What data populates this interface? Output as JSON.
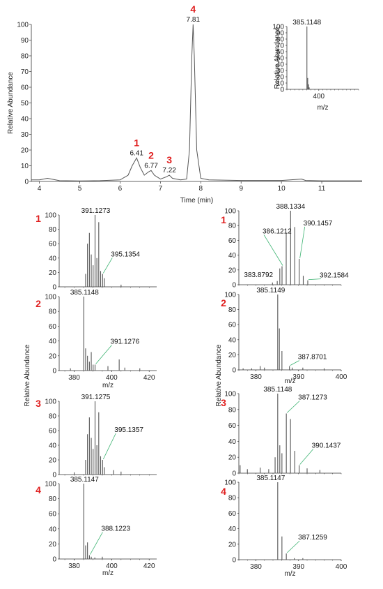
{
  "colors": {
    "trace": "#555555",
    "annotation": "#3cb371",
    "number": "#e02020",
    "axis": "#333333"
  },
  "chart_data": [
    {
      "id": "chromatogram",
      "type": "line",
      "xlabel": "Time (min)",
      "ylabel": "Relative Abundance",
      "xlim": [
        3.8,
        12.0
      ],
      "ylim": [
        0,
        100
      ],
      "xticks": [
        4,
        5,
        6,
        7,
        8,
        9,
        10,
        11
      ],
      "yticks": [
        0,
        10,
        20,
        30,
        40,
        50,
        60,
        70,
        80,
        90,
        100
      ],
      "series": [
        {
          "x": [
            3.8,
            4.0,
            4.1,
            4.2,
            4.3,
            4.5,
            5.0,
            5.5,
            6.0,
            6.2,
            6.3,
            6.41,
            6.5,
            6.6,
            6.7,
            6.77,
            6.85,
            7.0,
            7.15,
            7.22,
            7.3,
            7.5,
            7.65,
            7.72,
            7.78,
            7.81,
            7.84,
            7.9,
            8.0,
            8.2,
            9.0,
            10.0,
            10.5,
            10.6,
            11.0,
            12.0
          ],
          "y": [
            1,
            1,
            1.5,
            2,
            1.5,
            0.5,
            0.3,
            0.5,
            1,
            4,
            10,
            15,
            9,
            4,
            6,
            7,
            4,
            1.5,
            3,
            4,
            2,
            1,
            1.5,
            20,
            80,
            100,
            80,
            20,
            2,
            1,
            0.6,
            0.6,
            1.5,
            0.6,
            0.4,
            0.4
          ]
        }
      ],
      "peaks": [
        {
          "number": "1",
          "x": 6.41,
          "label": "6.41",
          "y": 15
        },
        {
          "number": "2",
          "x": 6.77,
          "label": "6.77",
          "y": 7
        },
        {
          "number": "3",
          "x": 7.22,
          "label": "7.22",
          "y": 4
        },
        {
          "number": "4",
          "x": 7.81,
          "label": "7.81",
          "y": 100
        }
      ]
    },
    {
      "id": "inset",
      "type": "bar",
      "xlabel": "m/z",
      "ylabel": "Relative Abundance",
      "xlim": [
        360,
        450
      ],
      "ylim": [
        0,
        100
      ],
      "xticks": [
        400
      ],
      "yticks": [
        0,
        10,
        20,
        30,
        40,
        50,
        60,
        70,
        80,
        90,
        100
      ],
      "peaks": [
        {
          "x": 385.1148,
          "y": 100,
          "label": "385.1148"
        },
        {
          "x": 386.1,
          "y": 18
        },
        {
          "x": 387.1,
          "y": 8
        },
        {
          "x": 388.0,
          "y": 3
        }
      ]
    },
    {
      "id": "left-panel-1",
      "number": "1",
      "type": "bar",
      "xlim": [
        372,
        424
      ],
      "ylim": [
        0,
        100
      ],
      "yticks": [
        0,
        20,
        40,
        60,
        80,
        100
      ],
      "peaks": [
        {
          "x": 386.1,
          "y": 18
        },
        {
          "x": 387.1,
          "y": 60
        },
        {
          "x": 388.1,
          "y": 75
        },
        {
          "x": 389.1,
          "y": 45
        },
        {
          "x": 390.1,
          "y": 30
        },
        {
          "x": 391.1273,
          "y": 100,
          "label": "391.1273"
        },
        {
          "x": 392.1,
          "y": 40
        },
        {
          "x": 393.1,
          "y": 90
        },
        {
          "x": 394.1,
          "y": 22
        },
        {
          "x": 395.1354,
          "y": 18,
          "label": "395.1354"
        },
        {
          "x": 396.1,
          "y": 12
        },
        {
          "x": 405.0,
          "y": 3
        }
      ]
    },
    {
      "id": "left-panel-2",
      "number": "2",
      "type": "bar",
      "xlabel": "m/z",
      "xlim": [
        372,
        424
      ],
      "ylim": [
        0,
        100
      ],
      "xticks": [
        380,
        400,
        420
      ],
      "yticks": [
        0,
        20,
        40,
        60,
        80,
        100
      ],
      "peaks": [
        {
          "x": 385.1148,
          "y": 100,
          "label": "385.1148"
        },
        {
          "x": 386.1,
          "y": 30
        },
        {
          "x": 387.1,
          "y": 20
        },
        {
          "x": 388.1,
          "y": 12
        },
        {
          "x": 389.1,
          "y": 25
        },
        {
          "x": 390.1,
          "y": 8
        },
        {
          "x": 391.1276,
          "y": 8,
          "label": "391.1276"
        },
        {
          "x": 378.0,
          "y": 3
        },
        {
          "x": 398.0,
          "y": 6
        },
        {
          "x": 404.0,
          "y": 15
        },
        {
          "x": 407.0,
          "y": 4
        },
        {
          "x": 415.0,
          "y": 3
        }
      ]
    },
    {
      "id": "left-panel-3",
      "number": "3",
      "type": "bar",
      "xlim": [
        372,
        424
      ],
      "ylim": [
        0,
        100
      ],
      "yticks": [
        0,
        20,
        40,
        60,
        80,
        100
      ],
      "peaks": [
        {
          "x": 386.1,
          "y": 20
        },
        {
          "x": 387.1,
          "y": 55
        },
        {
          "x": 388.1,
          "y": 78
        },
        {
          "x": 389.1,
          "y": 50
        },
        {
          "x": 390.1,
          "y": 35
        },
        {
          "x": 391.1275,
          "y": 100,
          "label": "391.1275"
        },
        {
          "x": 392.1,
          "y": 40
        },
        {
          "x": 393.1,
          "y": 85
        },
        {
          "x": 394.1,
          "y": 25
        },
        {
          "x": 395.1357,
          "y": 20,
          "label": "395.1357"
        },
        {
          "x": 396.1,
          "y": 10
        },
        {
          "x": 380.0,
          "y": 3
        },
        {
          "x": 401.0,
          "y": 6
        },
        {
          "x": 405.0,
          "y": 4
        }
      ]
    },
    {
      "id": "left-panel-4",
      "number": "4",
      "type": "bar",
      "xlabel": "m/z",
      "xlim": [
        372,
        424
      ],
      "ylim": [
        0,
        100
      ],
      "xticks": [
        380,
        400,
        420
      ],
      "yticks": [
        0,
        20,
        40,
        60,
        80,
        100
      ],
      "peaks": [
        {
          "x": 385.1147,
          "y": 100,
          "label": "385.1147"
        },
        {
          "x": 386.1,
          "y": 18
        },
        {
          "x": 387.1,
          "y": 22
        },
        {
          "x": 388.1223,
          "y": 5,
          "label": "388.1223"
        },
        {
          "x": 389.1,
          "y": 3
        },
        {
          "x": 391.0,
          "y": 2
        },
        {
          "x": 395.0,
          "y": 3
        }
      ]
    },
    {
      "id": "right-panel-1",
      "number": "1",
      "type": "bar",
      "xlim": [
        376,
        400
      ],
      "ylim": [
        0,
        100
      ],
      "yticks": [
        0,
        20,
        40,
        60,
        80,
        100
      ],
      "peaks": [
        {
          "x": 383.8792,
          "y": 3,
          "label": "383.8792"
        },
        {
          "x": 385.0,
          "y": 5
        },
        {
          "x": 385.6,
          "y": 22
        },
        {
          "x": 386.1212,
          "y": 25,
          "label": "386.1212"
        },
        {
          "x": 387.1,
          "y": 70
        },
        {
          "x": 388.1334,
          "y": 100,
          "label": "388.1334"
        },
        {
          "x": 389.1,
          "y": 78
        },
        {
          "x": 390.1457,
          "y": 35,
          "label": "390.1457"
        },
        {
          "x": 391.1,
          "y": 12
        },
        {
          "x": 392.1584,
          "y": 6,
          "label": "392.1584"
        }
      ]
    },
    {
      "id": "right-panel-2",
      "number": "2",
      "type": "bar",
      "xlabel": "m/z",
      "xlim": [
        376,
        400
      ],
      "ylim": [
        0,
        100
      ],
      "xticks": [
        380,
        390,
        400
      ],
      "yticks": [
        0,
        20,
        40,
        60,
        80,
        100
      ],
      "peaks": [
        {
          "x": 377.0,
          "y": 2
        },
        {
          "x": 379.0,
          "y": 2
        },
        {
          "x": 381.0,
          "y": 5
        },
        {
          "x": 382.0,
          "y": 3
        },
        {
          "x": 385.1149,
          "y": 100,
          "label": "385.1149"
        },
        {
          "x": 385.5,
          "y": 55
        },
        {
          "x": 386.1,
          "y": 25
        },
        {
          "x": 387.8701,
          "y": 5,
          "label": "387.8701"
        },
        {
          "x": 388.5,
          "y": 3
        },
        {
          "x": 391.0,
          "y": 3
        },
        {
          "x": 396.0,
          "y": 2
        }
      ]
    },
    {
      "id": "right-panel-3",
      "number": "3",
      "type": "bar",
      "xlim": [
        376,
        400
      ],
      "ylim": [
        0,
        100
      ],
      "yticks": [
        0,
        20,
        40,
        60,
        80,
        100
      ],
      "peaks": [
        {
          "x": 376.3,
          "y": 10
        },
        {
          "x": 378.0,
          "y": 5
        },
        {
          "x": 381.0,
          "y": 7
        },
        {
          "x": 383.0,
          "y": 5
        },
        {
          "x": 384.5,
          "y": 20
        },
        {
          "x": 385.1148,
          "y": 100,
          "label": "385.1148"
        },
        {
          "x": 385.6,
          "y": 35
        },
        {
          "x": 386.1,
          "y": 25
        },
        {
          "x": 387.1273,
          "y": 75,
          "label": "387.1273"
        },
        {
          "x": 388.1,
          "y": 68
        },
        {
          "x": 389.1,
          "y": 28
        },
        {
          "x": 390.1437,
          "y": 10,
          "label": "390.1437"
        },
        {
          "x": 392.0,
          "y": 6
        },
        {
          "x": 395.0,
          "y": 4
        }
      ]
    },
    {
      "id": "right-panel-4",
      "number": "4",
      "type": "bar",
      "xlabel": "m/z",
      "xlim": [
        376,
        400
      ],
      "ylim": [
        0,
        100
      ],
      "xticks": [
        380,
        390,
        400
      ],
      "yticks": [
        0,
        20,
        40,
        60,
        80,
        100
      ],
      "peaks": [
        {
          "x": 385.1147,
          "y": 100,
          "label": "385.1147"
        },
        {
          "x": 386.1,
          "y": 30
        },
        {
          "x": 387.1259,
          "y": 8,
          "label": "387.1259"
        },
        {
          "x": 389.0,
          "y": 2
        },
        {
          "x": 391.0,
          "y": 2
        }
      ]
    }
  ],
  "shared_labels": {
    "left_relative_abundance": "Relative Abundance",
    "right_relative_abundance": "Relative Abundance"
  }
}
